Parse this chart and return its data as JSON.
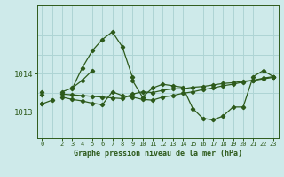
{
  "title": "Graphe pression niveau de la mer (hPa)",
  "bg_color": "#ceeaea",
  "line_color": "#2d5a1b",
  "grid_color": "#aed4d4",
  "ylim": [
    1012.3,
    1015.8
  ],
  "yticks": [
    1013,
    1014
  ],
  "xlim": [
    -0.5,
    23.5
  ],
  "xticks": [
    0,
    2,
    3,
    4,
    5,
    6,
    7,
    8,
    9,
    10,
    11,
    12,
    13,
    14,
    15,
    16,
    17,
    18,
    19,
    20,
    21,
    22,
    23
  ],
  "xtick_labels": [
    "0",
    "2",
    "3",
    "4",
    "5",
    "6",
    "7",
    "8",
    "9",
    "10",
    "11",
    "12",
    "13",
    "14",
    "15",
    "16",
    "17",
    "18",
    "19",
    "20",
    "21",
    "22",
    "23"
  ],
  "series": [
    [
      1013.2,
      1013.3,
      null,
      1013.6,
      1014.15,
      1014.6,
      1014.9,
      1015.1,
      1014.7,
      1013.9,
      null,
      null,
      null,
      null,
      null,
      null,
      null,
      null,
      null,
      null,
      null,
      null,
      null,
      null
    ],
    [
      1013.45,
      null,
      1013.38,
      1013.32,
      1013.28,
      1013.22,
      1013.18,
      1013.52,
      1013.42,
      1013.38,
      1013.32,
      1013.3,
      1013.38,
      1013.42,
      1013.48,
      1013.52,
      1013.58,
      1013.62,
      1013.68,
      1013.72,
      1013.78,
      1013.82,
      1013.88,
      1013.92
    ],
    [
      1013.52,
      null,
      1013.46,
      1013.44,
      1013.42,
      1013.4,
      1013.38,
      1013.36,
      1013.34,
      1013.46,
      1013.52,
      1013.5,
      1013.56,
      1013.6,
      1013.6,
      1013.64,
      1013.66,
      1013.7,
      1013.74,
      1013.76,
      1013.8,
      1013.82,
      1013.86,
      1013.9
    ],
    [
      1013.2,
      null,
      1013.52,
      1013.62,
      1013.82,
      1014.08,
      null,
      null,
      null,
      1013.82,
      1013.38,
      1013.62,
      1013.72,
      1013.68,
      1013.64,
      1013.08,
      1012.82,
      1012.78,
      1012.88,
      1013.12,
      1013.12,
      1013.92,
      1014.08,
      1013.92
    ]
  ]
}
